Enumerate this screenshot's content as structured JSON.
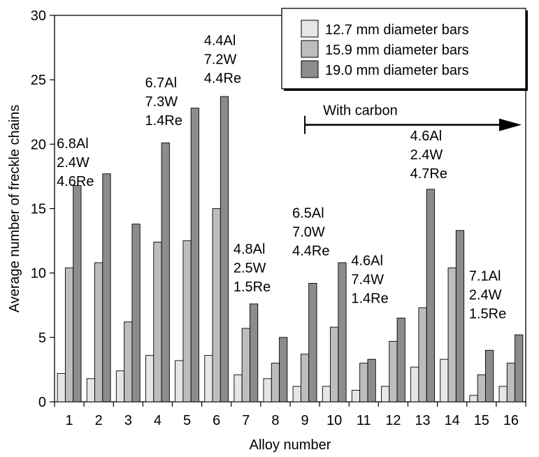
{
  "chart_data": {
    "type": "bar",
    "title": "",
    "xlabel": "Alloy number",
    "ylabel": "Average number of freckle chains",
    "ylim": [
      0,
      30
    ],
    "yticks": [
      0,
      5,
      10,
      15,
      20,
      25,
      30
    ],
    "grid": false,
    "legend_position": "top-right",
    "categories": [
      "1",
      "2",
      "3",
      "4",
      "5",
      "6",
      "7",
      "8",
      "9",
      "10",
      "11",
      "12",
      "13",
      "14",
      "15",
      "16"
    ],
    "series": [
      {
        "name": "12.7 mm diameter bars",
        "color": "#e6e6e6",
        "values": [
          2.2,
          1.8,
          2.4,
          3.6,
          3.2,
          3.6,
          2.1,
          1.8,
          1.2,
          1.2,
          0.9,
          1.2,
          2.7,
          3.3,
          0.5,
          1.2
        ]
      },
      {
        "name": "15.9 mm diameter bars",
        "color": "#bdbdbd",
        "values": [
          10.4,
          10.8,
          6.2,
          12.4,
          12.5,
          15.0,
          5.7,
          3.0,
          3.7,
          5.8,
          3.0,
          4.7,
          7.3,
          10.4,
          2.1,
          3.0
        ]
      },
      {
        "name": "19.0 mm diameter bars",
        "color": "#8c8c8c",
        "values": [
          16.8,
          17.7,
          13.8,
          20.1,
          22.8,
          23.7,
          7.6,
          5.0,
          9.2,
          10.8,
          3.3,
          6.5,
          16.5,
          13.3,
          4.0,
          5.2
        ]
      }
    ],
    "annotations": [
      {
        "category": "1",
        "lines": [
          "6.8Al",
          "2.4W",
          "4.6Re"
        ],
        "anchor_value": 19.7
      },
      {
        "category": "4",
        "lines": [
          "6.7Al",
          "7.3W",
          "1.4Re"
        ],
        "anchor_value": 24.4
      },
      {
        "category": "6",
        "lines": [
          "4.4Al",
          "7.2W",
          "4.4Re"
        ],
        "anchor_value": 27.7
      },
      {
        "category": "7",
        "lines": [
          "4.8Al",
          "2.5W",
          "1.5Re"
        ],
        "anchor_value": 11.5
      },
      {
        "category": "9",
        "lines": [
          "6.5Al",
          "7.0W",
          "4.4Re"
        ],
        "anchor_value": 14.3
      },
      {
        "category": "11",
        "lines": [
          "4.6Al",
          "7.4W",
          "1.4Re"
        ],
        "anchor_value": 10.6
      },
      {
        "category": "13",
        "lines": [
          "4.6Al",
          "2.4W",
          "4.7Re"
        ],
        "anchor_value": 20.3
      },
      {
        "category": "15",
        "lines": [
          "7.1Al",
          "2.4W",
          "1.5Re"
        ],
        "anchor_value": 9.4
      }
    ],
    "carbon_arrow": {
      "label": "With carbon",
      "from_category": "9",
      "value": 21.5
    }
  }
}
